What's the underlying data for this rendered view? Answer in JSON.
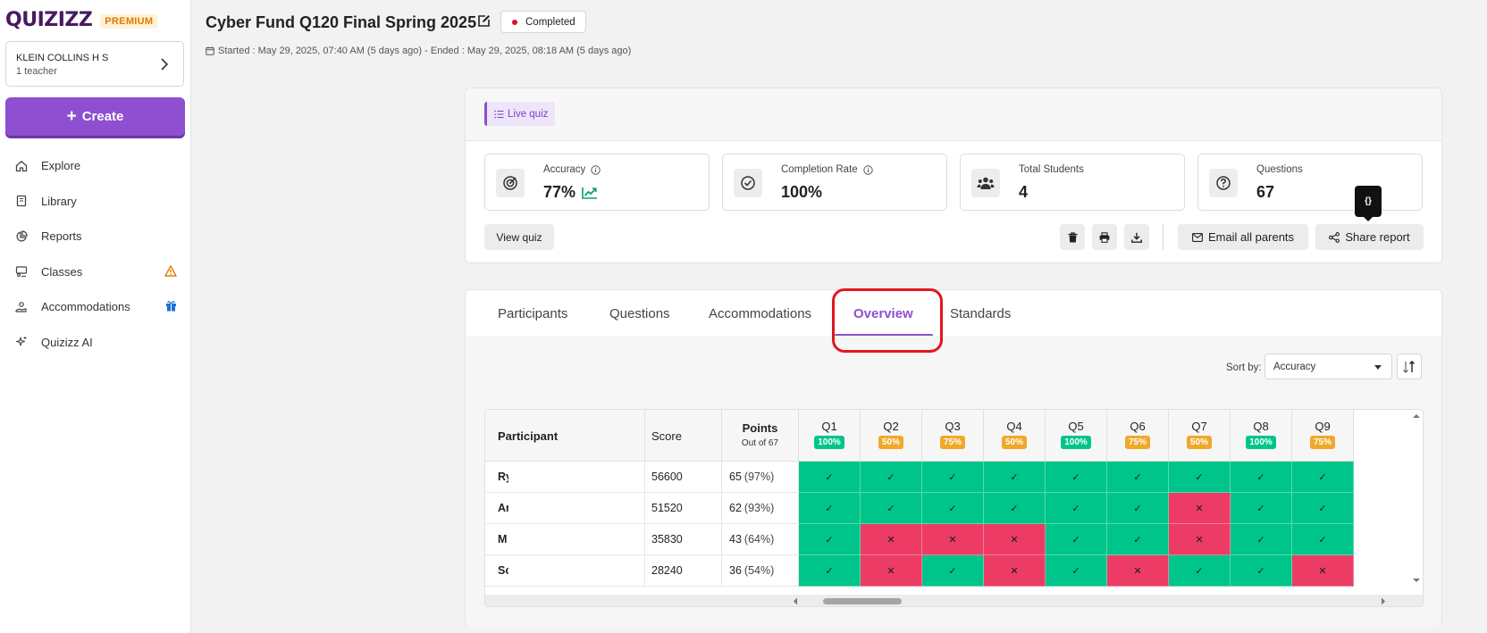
{
  "sidebar": {
    "logo": "QUIZIZZ",
    "premium": "PREMIUM",
    "school_name": "KLEIN COLLINS H S",
    "school_sub": "1 teacher",
    "create_label": "Create",
    "items": [
      {
        "label": "Explore",
        "icon": "home-icon"
      },
      {
        "label": "Library",
        "icon": "book-icon"
      },
      {
        "label": "Reports",
        "icon": "pie-chart-icon"
      },
      {
        "label": "Classes",
        "icon": "classroom-icon",
        "badge": "warning-icon"
      },
      {
        "label": "Accommodations",
        "icon": "hand-heart-icon",
        "badge": "gift-icon"
      },
      {
        "label": "Quizizz AI",
        "icon": "sparkle-icon"
      }
    ]
  },
  "header": {
    "title": "Cyber Fund Q120 Final Spring 2025",
    "status": "Completed",
    "dates": "Started : May 29, 2025, 07:40 AM (5 days ago) - Ended : May 29, 2025, 08:18 AM (5 days ago)"
  },
  "summary": {
    "tag": "Live quiz",
    "stats": [
      {
        "label": "Accuracy",
        "value": "77%"
      },
      {
        "label": "Completion Rate",
        "value": "100%"
      },
      {
        "label": "Total Students",
        "value": "4"
      },
      {
        "label": "Questions",
        "value": "67"
      }
    ],
    "view_quiz": "View quiz",
    "email_parents": "Email all parents",
    "share_report": "Share report",
    "tooltip": "{}"
  },
  "report": {
    "tabs": [
      "Participants",
      "Questions",
      "Accommodations",
      "Overview",
      "Standards"
    ],
    "active_tab": "Overview",
    "sort_by_label": "Sort by:",
    "sort_by_value": "Accuracy",
    "columns": {
      "participant": "Participant",
      "score": "Score",
      "points": "Points",
      "points_sub": "Out of 67"
    },
    "questions": [
      {
        "label": "Q1",
        "pct": "100%",
        "color": "#00c58a"
      },
      {
        "label": "Q2",
        "pct": "50%",
        "color": "#efa929"
      },
      {
        "label": "Q3",
        "pct": "75%",
        "color": "#efa929"
      },
      {
        "label": "Q4",
        "pct": "50%",
        "color": "#efa929"
      },
      {
        "label": "Q5",
        "pct": "100%",
        "color": "#00c58a"
      },
      {
        "label": "Q6",
        "pct": "75%",
        "color": "#efa929"
      },
      {
        "label": "Q7",
        "pct": "50%",
        "color": "#efa929"
      },
      {
        "label": "Q8",
        "pct": "100%",
        "color": "#00c58a"
      },
      {
        "label": "Q9",
        "pct": "75%",
        "color": "#efa929"
      }
    ],
    "rows": [
      {
        "name": "Ry",
        "score": "56600",
        "points": "65",
        "pct": "(97%)",
        "answers": [
          1,
          1,
          1,
          1,
          1,
          1,
          1,
          1,
          1
        ]
      },
      {
        "name": "Ar",
        "score": "51520",
        "points": "62",
        "pct": "(93%)",
        "answers": [
          1,
          1,
          1,
          1,
          1,
          1,
          0,
          1,
          1
        ]
      },
      {
        "name": "M",
        "score": "35830",
        "points": "43",
        "pct": "(64%)",
        "answers": [
          1,
          0,
          0,
          0,
          1,
          1,
          0,
          1,
          1
        ]
      },
      {
        "name": "Sc",
        "score": "28240",
        "points": "36",
        "pct": "(54%)",
        "answers": [
          1,
          0,
          1,
          0,
          1,
          0,
          1,
          1,
          0
        ]
      }
    ],
    "marks": {
      "correct": "✓",
      "wrong": "✕"
    }
  }
}
